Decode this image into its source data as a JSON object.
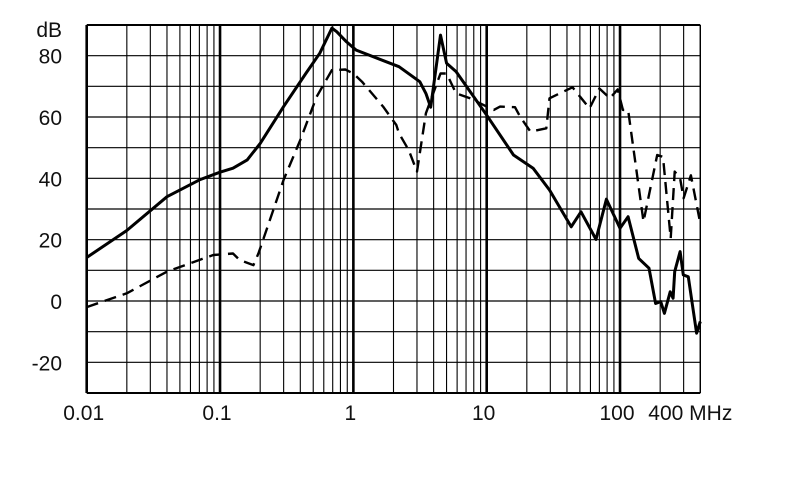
{
  "chart_data": {
    "type": "line",
    "title": "",
    "ylabel": "dB",
    "xlabel": "",
    "x_unit": "MHz",
    "x_scale": "log",
    "xlim": [
      0.01,
      400
    ],
    "ylim": [
      -30,
      90
    ],
    "grid": true,
    "x_tick_labels": [
      "0.01",
      "0.1",
      "1",
      "10",
      "100",
      "400 MHz"
    ],
    "x_tick_values": [
      0.01,
      0.1,
      1,
      10,
      100,
      400
    ],
    "y_tick_labels": [
      "-20",
      "0",
      "20",
      "40",
      "60",
      "80"
    ],
    "y_tick_values": [
      -20,
      0,
      20,
      40,
      60,
      80
    ],
    "series": [
      {
        "style": "solid",
        "color": "#000000",
        "points": [
          [
            0.01,
            14.2
          ],
          [
            0.02,
            23
          ],
          [
            0.04,
            34
          ],
          [
            0.07,
            39.5
          ],
          [
            0.1,
            42
          ],
          [
            0.125,
            43.3
          ],
          [
            0.16,
            46
          ],
          [
            0.2,
            51.4
          ],
          [
            0.3,
            63.4
          ],
          [
            0.44,
            74.2
          ],
          [
            0.56,
            80.8
          ],
          [
            0.69,
            89
          ],
          [
            0.75,
            87.8
          ],
          [
            0.89,
            84.5
          ],
          [
            1.05,
            81.8
          ],
          [
            2.2,
            76.4
          ],
          [
            3.15,
            71.5
          ],
          [
            3.5,
            67.7
          ],
          [
            3.8,
            63.2
          ],
          [
            4.5,
            86.7
          ],
          [
            5,
            77.5
          ],
          [
            5.9,
            74.8
          ],
          [
            10,
            60.6
          ],
          [
            15.9,
            47.6
          ],
          [
            22.3,
            43.3
          ],
          [
            29.6,
            36.2
          ],
          [
            43,
            24.2
          ],
          [
            51,
            29.1
          ],
          [
            66,
            20.1
          ],
          [
            79,
            33.2
          ],
          [
            100,
            23.7
          ],
          [
            115,
            27.5
          ],
          [
            138,
            13.9
          ],
          [
            165,
            10.7
          ],
          [
            185,
            -0.8
          ],
          [
            202,
            -0.2
          ],
          [
            215,
            -4
          ],
          [
            238,
            3
          ],
          [
            250,
            0.9
          ],
          [
            257,
            9.6
          ],
          [
            282,
            16.1
          ],
          [
            298,
            8.5
          ],
          [
            325,
            7.9
          ],
          [
            375,
            -10.5
          ],
          [
            400,
            -6.7
          ]
        ]
      },
      {
        "style": "dashed",
        "color": "#000000",
        "points": [
          [
            0.01,
            -2
          ],
          [
            0.02,
            2.5
          ],
          [
            0.04,
            9.6
          ],
          [
            0.089,
            15
          ],
          [
            0.125,
            15.5
          ],
          [
            0.14,
            13.4
          ],
          [
            0.178,
            11.7
          ],
          [
            0.194,
            15.5
          ],
          [
            0.3,
            39.5
          ],
          [
            0.4,
            52.5
          ],
          [
            0.53,
            66.6
          ],
          [
            0.69,
            75.3
          ],
          [
            0.87,
            75.5
          ],
          [
            1.0,
            74.2
          ],
          [
            1.16,
            71.5
          ],
          [
            1.67,
            63.4
          ],
          [
            2.1,
            57.4
          ],
          [
            2.2,
            54.7
          ],
          [
            2.6,
            49.2
          ],
          [
            3.0,
            42.2
          ],
          [
            3.5,
            61.2
          ],
          [
            4.5,
            74.2
          ],
          [
            5,
            74.2
          ],
          [
            5.9,
            67.7
          ],
          [
            7.5,
            66.1
          ],
          [
            10,
            63.4
          ],
          [
            11.3,
            62.3
          ],
          [
            12.6,
            63.4
          ],
          [
            16.3,
            63.2
          ],
          [
            17.8,
            60.1
          ],
          [
            21.3,
            55.2
          ],
          [
            28,
            56.3
          ],
          [
            29.6,
            66.1
          ],
          [
            44,
            69.7
          ],
          [
            59,
            62.8
          ],
          [
            70,
            69.3
          ],
          [
            84,
            66.1
          ],
          [
            96,
            69
          ],
          [
            105,
            62.3
          ],
          [
            115,
            62.3
          ],
          [
            150,
            25.9
          ],
          [
            190,
            47.6
          ],
          [
            210,
            47
          ],
          [
            240,
            20.4
          ],
          [
            257,
            42.2
          ],
          [
            282,
            40
          ],
          [
            300,
            33.5
          ],
          [
            340,
            41
          ],
          [
            400,
            25.3
          ]
        ]
      }
    ]
  }
}
